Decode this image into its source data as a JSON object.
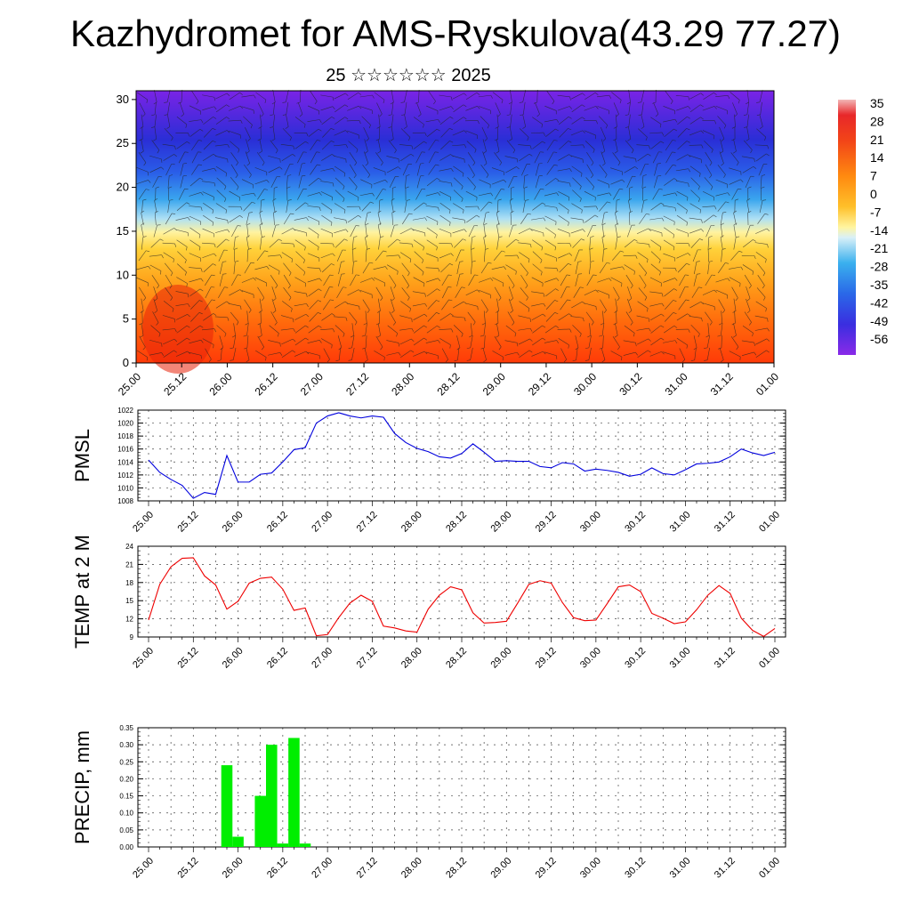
{
  "title": "Kazhydromet for AMS-Ryskulova(43.29 77.27)",
  "subtitle": "25 ☆☆☆☆☆☆ 2025",
  "time_ticks": [
    "25.00",
    "25.12",
    "26.00",
    "26.12",
    "27.00",
    "27.12",
    "28.00",
    "28.12",
    "29.00",
    "29.12",
    "30.00",
    "30.12",
    "31.00",
    "31.12",
    "01.00"
  ],
  "chart_data": [
    {
      "type": "heatmap",
      "title": "Kazhydromet for AMS-Ryskulova(43.29 77.27)",
      "x_ticks": [
        "25.00",
        "25.12",
        "26.00",
        "26.12",
        "27.00",
        "27.12",
        "28.00",
        "28.12",
        "29.00",
        "29.12",
        "30.00",
        "30.12",
        "31.00",
        "31.12",
        "01.00"
      ],
      "y_ticks": [
        0,
        5,
        10,
        15,
        20,
        25,
        30
      ],
      "ylim": [
        0,
        31
      ],
      "colorbar_labels": [
        "35",
        "28",
        "21",
        "14",
        "7",
        "0",
        "-7",
        "-14",
        "-21",
        "-28",
        "-35",
        "-42",
        "-49",
        "-56"
      ],
      "colorbar_range": [
        -60,
        38
      ],
      "overlay": "wind barbs"
    },
    {
      "type": "line",
      "ylabel": "PMSL",
      "ylim": [
        1008,
        1022
      ],
      "y_ticks": [
        "1008",
        "1010",
        "1012",
        "1014",
        "1016",
        "1018",
        "1020",
        "1022"
      ],
      "x_ticks": [
        "25.00",
        "25.12",
        "26.00",
        "26.12",
        "27.00",
        "27.12",
        "28.00",
        "28.12",
        "29.00",
        "29.12",
        "30.00",
        "30.12",
        "31.00",
        "31.12",
        "01.00"
      ],
      "color": "#0000dd",
      "values": [
        1014.3,
        1012.4,
        1011.3,
        1010.4,
        1008.4,
        1009.3,
        1009.0,
        1015.0,
        1010.9,
        1010.9,
        1012.1,
        1012.3,
        1014.0,
        1015.9,
        1016.2,
        1020.0,
        1021.1,
        1021.6,
        1021.1,
        1020.8,
        1021.1,
        1020.9,
        1018.4,
        1017.0,
        1016.1,
        1015.6,
        1014.8,
        1014.6,
        1015.3,
        1016.8,
        1015.5,
        1014.1,
        1014.2,
        1014.1,
        1014.1,
        1013.3,
        1013.1,
        1013.9,
        1013.7,
        1012.6,
        1012.9,
        1012.7,
        1012.4,
        1011.8,
        1012.1,
        1013.1,
        1012.2,
        1012.0,
        1012.8,
        1013.7,
        1013.8,
        1014.0,
        1014.8,
        1016.0,
        1015.4,
        1015.0,
        1015.5
      ]
    },
    {
      "type": "line",
      "ylabel": "TEMP at 2 M",
      "ylim": [
        9,
        24
      ],
      "y_ticks": [
        "9",
        "12",
        "15",
        "18",
        "21",
        "24"
      ],
      "x_ticks": [
        "25.00",
        "25.12",
        "26.00",
        "26.12",
        "27.00",
        "27.12",
        "28.00",
        "28.12",
        "29.00",
        "29.12",
        "30.00",
        "30.12",
        "31.00",
        "31.12",
        "01.00"
      ],
      "color": "#ee0000",
      "values": [
        11.8,
        17.7,
        20.6,
        22.0,
        22.1,
        19.1,
        17.6,
        13.6,
        14.9,
        17.9,
        18.7,
        18.9,
        16.9,
        13.4,
        13.8,
        9.2,
        9.4,
        12.2,
        14.6,
        15.9,
        14.9,
        10.8,
        10.5,
        10.0,
        9.8,
        13.6,
        15.9,
        17.3,
        16.8,
        13.0,
        11.3,
        11.4,
        11.6,
        14.6,
        17.7,
        18.3,
        17.9,
        14.7,
        12.2,
        11.7,
        11.8,
        14.5,
        17.3,
        17.6,
        16.5,
        12.9,
        12.1,
        11.2,
        11.5,
        13.5,
        15.9,
        17.5,
        16.2,
        12.1,
        10.1,
        9.1,
        10.4
      ]
    },
    {
      "type": "bar",
      "ylabel": "PRECIP, mm",
      "ylim": [
        0,
        0.35
      ],
      "y_ticks": [
        "0.00",
        "0.05",
        "0.10",
        "0.15",
        "0.20",
        "0.25",
        "0.30",
        "0.35"
      ],
      "x_ticks": [
        "25.00",
        "25.12",
        "26.00",
        "26.12",
        "27.00",
        "27.12",
        "28.00",
        "28.12",
        "29.00",
        "29.12",
        "30.00",
        "30.12",
        "31.00",
        "31.12",
        "01.00"
      ],
      "color": "#00ee00",
      "bars": [
        {
          "t": 7,
          "value": 0.24
        },
        {
          "t": 8,
          "value": 0.03
        },
        {
          "t": 10,
          "value": 0.15
        },
        {
          "t": 11,
          "value": 0.3
        },
        {
          "t": 12,
          "value": 0.01
        },
        {
          "t": 13,
          "value": 0.32
        },
        {
          "t": 14,
          "value": 0.01
        }
      ]
    }
  ],
  "panels": {
    "pmsl_label": "PMSL",
    "temp_label": "TEMP at 2 M",
    "precip_label": "PRECIP, mm"
  }
}
